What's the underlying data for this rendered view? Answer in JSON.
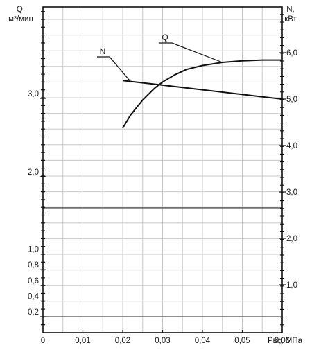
{
  "chart_data": {
    "type": "line",
    "title": "",
    "xlabel": "Рвс, МПа",
    "ylabel_left_line1": "Q,",
    "ylabel_left_line2": "м",
    "ylabel_left_sup": "3",
    "ylabel_left_line2_rest": "/мин",
    "ylabel_right_line1": "N,",
    "ylabel_right_line2": "кВт",
    "x_range": [
      0,
      0.06
    ],
    "x_ticks": [
      0,
      0.01,
      0.02,
      0.03,
      0.04,
      0.05,
      0.06
    ],
    "x_tick_labels": [
      "0",
      "0,01",
      "0,02",
      "0,03",
      "0,04",
      "0,05",
      "0,06"
    ],
    "left_axis_upper": {
      "ticks": [
        2.0,
        3.0
      ],
      "tick_labels": [
        "2,0",
        "3,0"
      ]
    },
    "left_axis_lower": {
      "ticks": [
        0.2,
        0.4,
        0.6,
        0.8,
        1.0
      ],
      "tick_labels": [
        "0,2",
        "0,4",
        "0,6",
        "0,8",
        "1,0"
      ]
    },
    "right_axis": {
      "ticks": [
        1.0,
        2.0,
        3.0,
        4.0,
        5.0,
        6.0
      ],
      "tick_labels": [
        "1,0",
        "2,0",
        "3,0",
        "4,0",
        "5,0",
        "6,0"
      ]
    },
    "grid": true,
    "series": [
      {
        "name": "Q",
        "axis": "left",
        "x": [
          0.02,
          0.022,
          0.025,
          0.028,
          0.03,
          0.033,
          0.036,
          0.04,
          0.045,
          0.05,
          0.055,
          0.06
        ],
        "y": [
          2.62,
          2.79,
          2.98,
          3.13,
          3.21,
          3.3,
          3.37,
          3.42,
          3.46,
          3.48,
          3.49,
          3.49
        ]
      },
      {
        "name": "N",
        "axis": "right",
        "x": [
          0.02,
          0.06
        ],
        "y": [
          5.4,
          5.0
        ]
      }
    ]
  }
}
